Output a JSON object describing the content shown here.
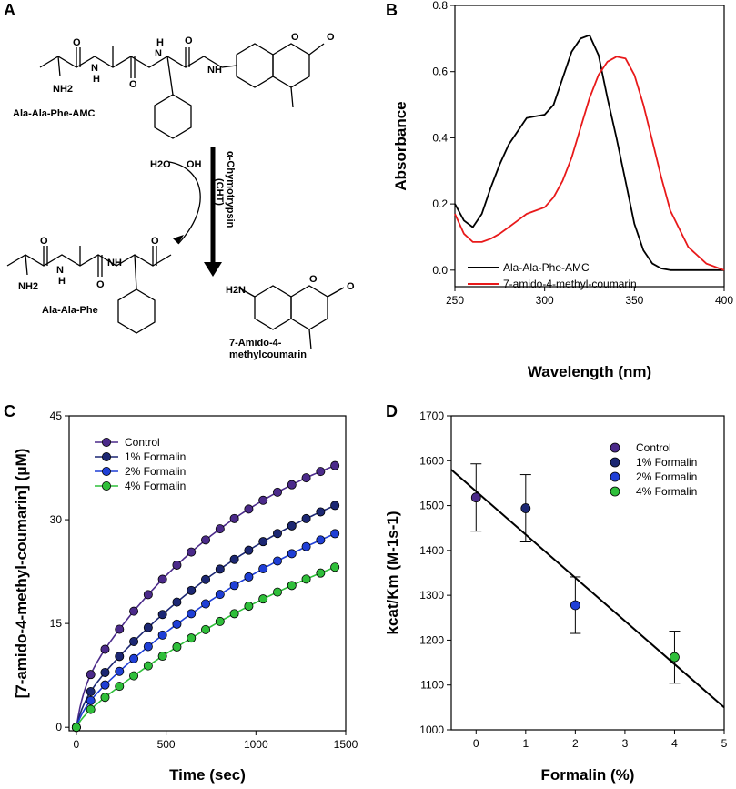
{
  "panels": {
    "a": "A",
    "b": "B",
    "c": "C",
    "d": "D"
  },
  "panel_a": {
    "substrate_name": "Ala-Ala-Phe-AMC",
    "water": "H2O",
    "oh": "OH",
    "enzyme_line1": "α-Chymotrypsin",
    "enzyme_line2": "(CHT)",
    "product1_name": "Ala-Ala-Phe",
    "product2_line1": "7-Amido-4-",
    "product2_line2": "methylcoumarin",
    "nh2": "NH2",
    "nh": "NH",
    "n": "N",
    "h": "H",
    "o": "O",
    "h2n": "H2N"
  },
  "chart_data": [
    {
      "id": "B",
      "type": "line",
      "xlabel": "Wavelength (nm)",
      "ylabel": "Absorbance",
      "xlim": [
        250,
        400
      ],
      "ylim": [
        -0.05,
        0.8
      ],
      "xticks": [
        250,
        300,
        350,
        400
      ],
      "yticks": [
        0.0,
        0.2,
        0.4,
        0.6,
        0.8
      ],
      "legend": "bottom-left",
      "series": [
        {
          "name": "Ala-Ala-Phe-AMC",
          "color": "#000000",
          "x": [
            250,
            255,
            260,
            265,
            270,
            275,
            280,
            285,
            290,
            295,
            300,
            305,
            310,
            315,
            320,
            325,
            330,
            335,
            340,
            345,
            350,
            355,
            360,
            365,
            370,
            380,
            390,
            400
          ],
          "y": [
            0.2,
            0.15,
            0.13,
            0.17,
            0.25,
            0.32,
            0.38,
            0.42,
            0.46,
            0.465,
            0.47,
            0.5,
            0.58,
            0.66,
            0.7,
            0.71,
            0.65,
            0.52,
            0.4,
            0.27,
            0.14,
            0.06,
            0.02,
            0.005,
            0.0,
            0.0,
            0.0,
            0.0
          ]
        },
        {
          "name": "7-amido-4-methyl-coumarin",
          "color": "#e8191a",
          "x": [
            250,
            255,
            260,
            265,
            270,
            275,
            280,
            285,
            290,
            295,
            300,
            305,
            310,
            315,
            320,
            325,
            330,
            335,
            340,
            345,
            350,
            355,
            360,
            365,
            370,
            380,
            390,
            400
          ],
          "y": [
            0.17,
            0.11,
            0.085,
            0.085,
            0.095,
            0.11,
            0.13,
            0.15,
            0.17,
            0.18,
            0.19,
            0.22,
            0.27,
            0.34,
            0.43,
            0.52,
            0.59,
            0.63,
            0.645,
            0.64,
            0.59,
            0.5,
            0.39,
            0.28,
            0.18,
            0.07,
            0.02,
            0.0
          ]
        }
      ]
    },
    {
      "id": "C",
      "type": "line",
      "xlabel": "Time (sec)",
      "ylabel": "[7-amido-4-methyl-coumarin] (μM)",
      "xlim": [
        -40,
        1500
      ],
      "ylim": [
        -0.5,
        45
      ],
      "xticks": [
        0,
        500,
        1000,
        1500
      ],
      "yticks": [
        0,
        15,
        30,
        45
      ],
      "legend": "top-left",
      "series": [
        {
          "name": "Control",
          "color": "#4b2a8a",
          "plateau": 48,
          "k": 0.001,
          "burst": 5
        },
        {
          "name": "1% Formalin",
          "color": "#1c2773",
          "plateau": 47,
          "k": 0.00075,
          "burst": 3
        },
        {
          "name": "2% Formalin",
          "color": "#1f3fd6",
          "plateau": 46,
          "k": 0.00062,
          "burst": 2
        },
        {
          "name": "4% Formalin",
          "color": "#2fbf3a",
          "plateau": 43,
          "k": 0.00052,
          "burst": 1
        }
      ],
      "times": [
        0,
        80,
        160,
        240,
        320,
        400,
        480,
        560,
        640,
        720,
        800,
        880,
        960,
        1040,
        1120,
        1200,
        1280,
        1360,
        1440
      ]
    },
    {
      "id": "D",
      "type": "scatter",
      "xlabel": "Formalin (%)",
      "ylabel": "kcat/Km (M-1s-1)",
      "xlim": [
        -0.5,
        5
      ],
      "ylim": [
        1000,
        1700
      ],
      "xticks": [
        0,
        1,
        2,
        3,
        4,
        5
      ],
      "yticks": [
        1000,
        1100,
        1200,
        1300,
        1400,
        1500,
        1600,
        1700
      ],
      "legend": "top-right",
      "points": [
        {
          "name": "Control",
          "x": 0,
          "y": 1518,
          "err": 75,
          "color": "#4b2a8a"
        },
        {
          "name": "1% Formalin",
          "x": 1,
          "y": 1494,
          "err": 75,
          "color": "#1c2773"
        },
        {
          "name": "2% Formalin",
          "x": 2,
          "y": 1278,
          "err": 63,
          "color": "#1f3fd6"
        },
        {
          "name": "4% Formalin",
          "x": 4,
          "y": 1162,
          "err": 58,
          "color": "#2fbf3a"
        }
      ],
      "fit_line": {
        "x": [
          -0.5,
          5
        ],
        "y": [
          1580,
          1050
        ]
      }
    }
  ]
}
